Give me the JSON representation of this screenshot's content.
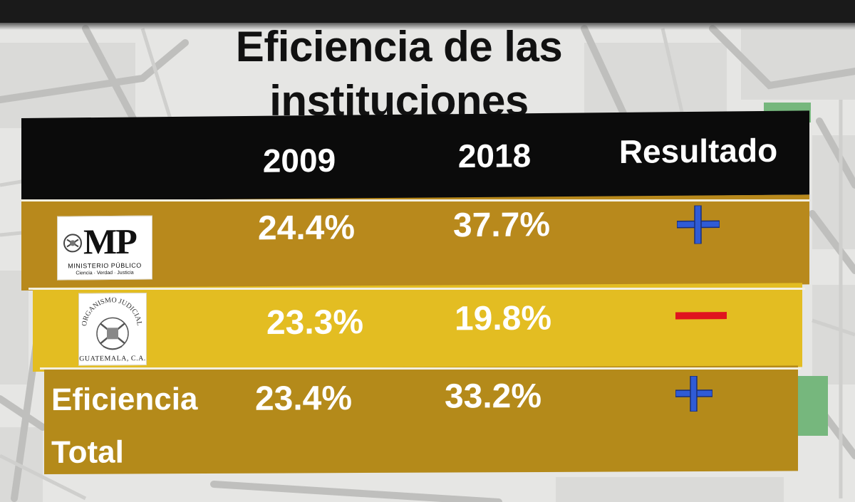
{
  "slide": {
    "title_line1": "Eficiencia de las",
    "title_line2": "instituciones"
  },
  "table": {
    "headers": [
      "2009",
      "2018",
      "Resultado"
    ],
    "rows": [
      {
        "logo": {
          "type": "mp-logo",
          "text": "MP",
          "subtitle": "MINISTERIO PÚBLICO",
          "tagline": "Ciencia · Verdad · Justicia"
        },
        "v2009": "24.4%",
        "v2018": "37.7%",
        "result": "plus",
        "result_color": "#2f5bd6"
      },
      {
        "logo": {
          "type": "oj-seal",
          "arc_text": "ORGANISMO JUDICIAL",
          "bottom_text": "GUATEMALA, C.A."
        },
        "v2009": "23.3%",
        "v2018": "19.8%",
        "result": "minus",
        "result_color": "#e0141e"
      },
      {
        "label_line1": "Eficiencia",
        "label_line2": "Total",
        "v2009": "23.4%",
        "v2018": "33.2%",
        "result": "plus",
        "result_color": "#2f5bd6"
      }
    ]
  },
  "colors": {
    "header_bg": "#0b0b0b",
    "row_dark": "#b8891c",
    "row_light": "#e3bd22",
    "map_road": "#c9c9c7",
    "map_block": "#dcdcda",
    "map_park": "#78b77e"
  }
}
